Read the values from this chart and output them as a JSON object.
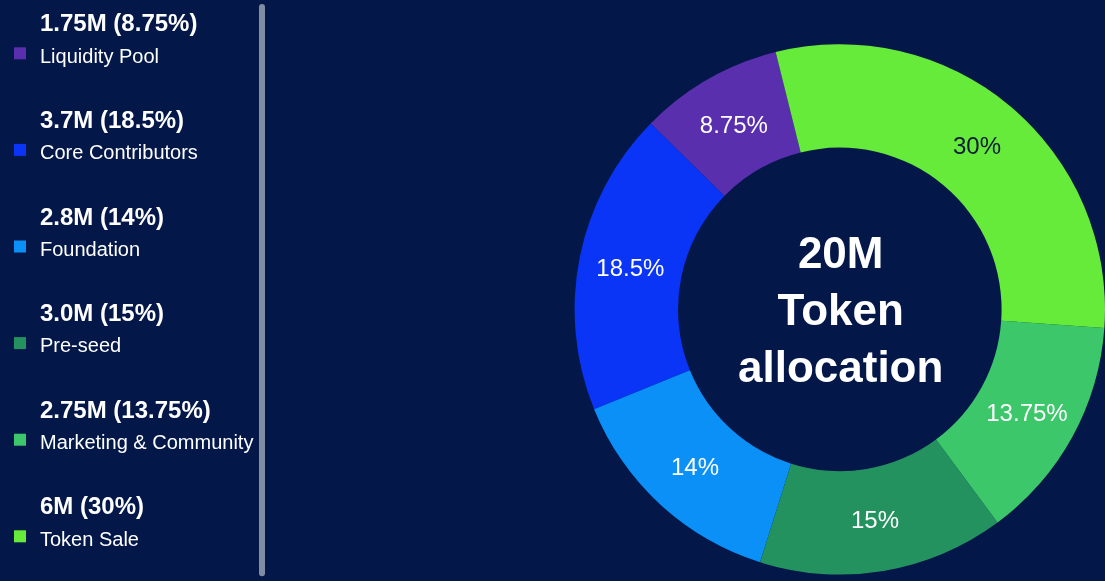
{
  "chart_data": {
    "type": "donut",
    "title": "20M\nToken\nallocation",
    "categories": [
      "Liquidity Pool",
      "Core Contributors",
      "Foundation",
      "Pre-seed",
      "Marketing & Community",
      "Token Sale"
    ],
    "values": [
      8.75,
      18.5,
      14,
      15,
      13.75,
      30
    ],
    "value_labels": [
      "8.75%",
      "18.5%",
      "14%",
      "15%",
      "13.75%",
      "30%"
    ],
    "colors": [
      "#5a2fae",
      "#0a35f7",
      "#0a90f7",
      "#24925f",
      "#3bc76a",
      "#66eb3a"
    ],
    "annotations": [
      "1.75M (8.75%)",
      "3.7M (18.5%)",
      "2.8M (14%)",
      "3.0M (15%)",
      "2.75M (13.75%)",
      "6M (30%)"
    ],
    "legend": "left"
  }
}
